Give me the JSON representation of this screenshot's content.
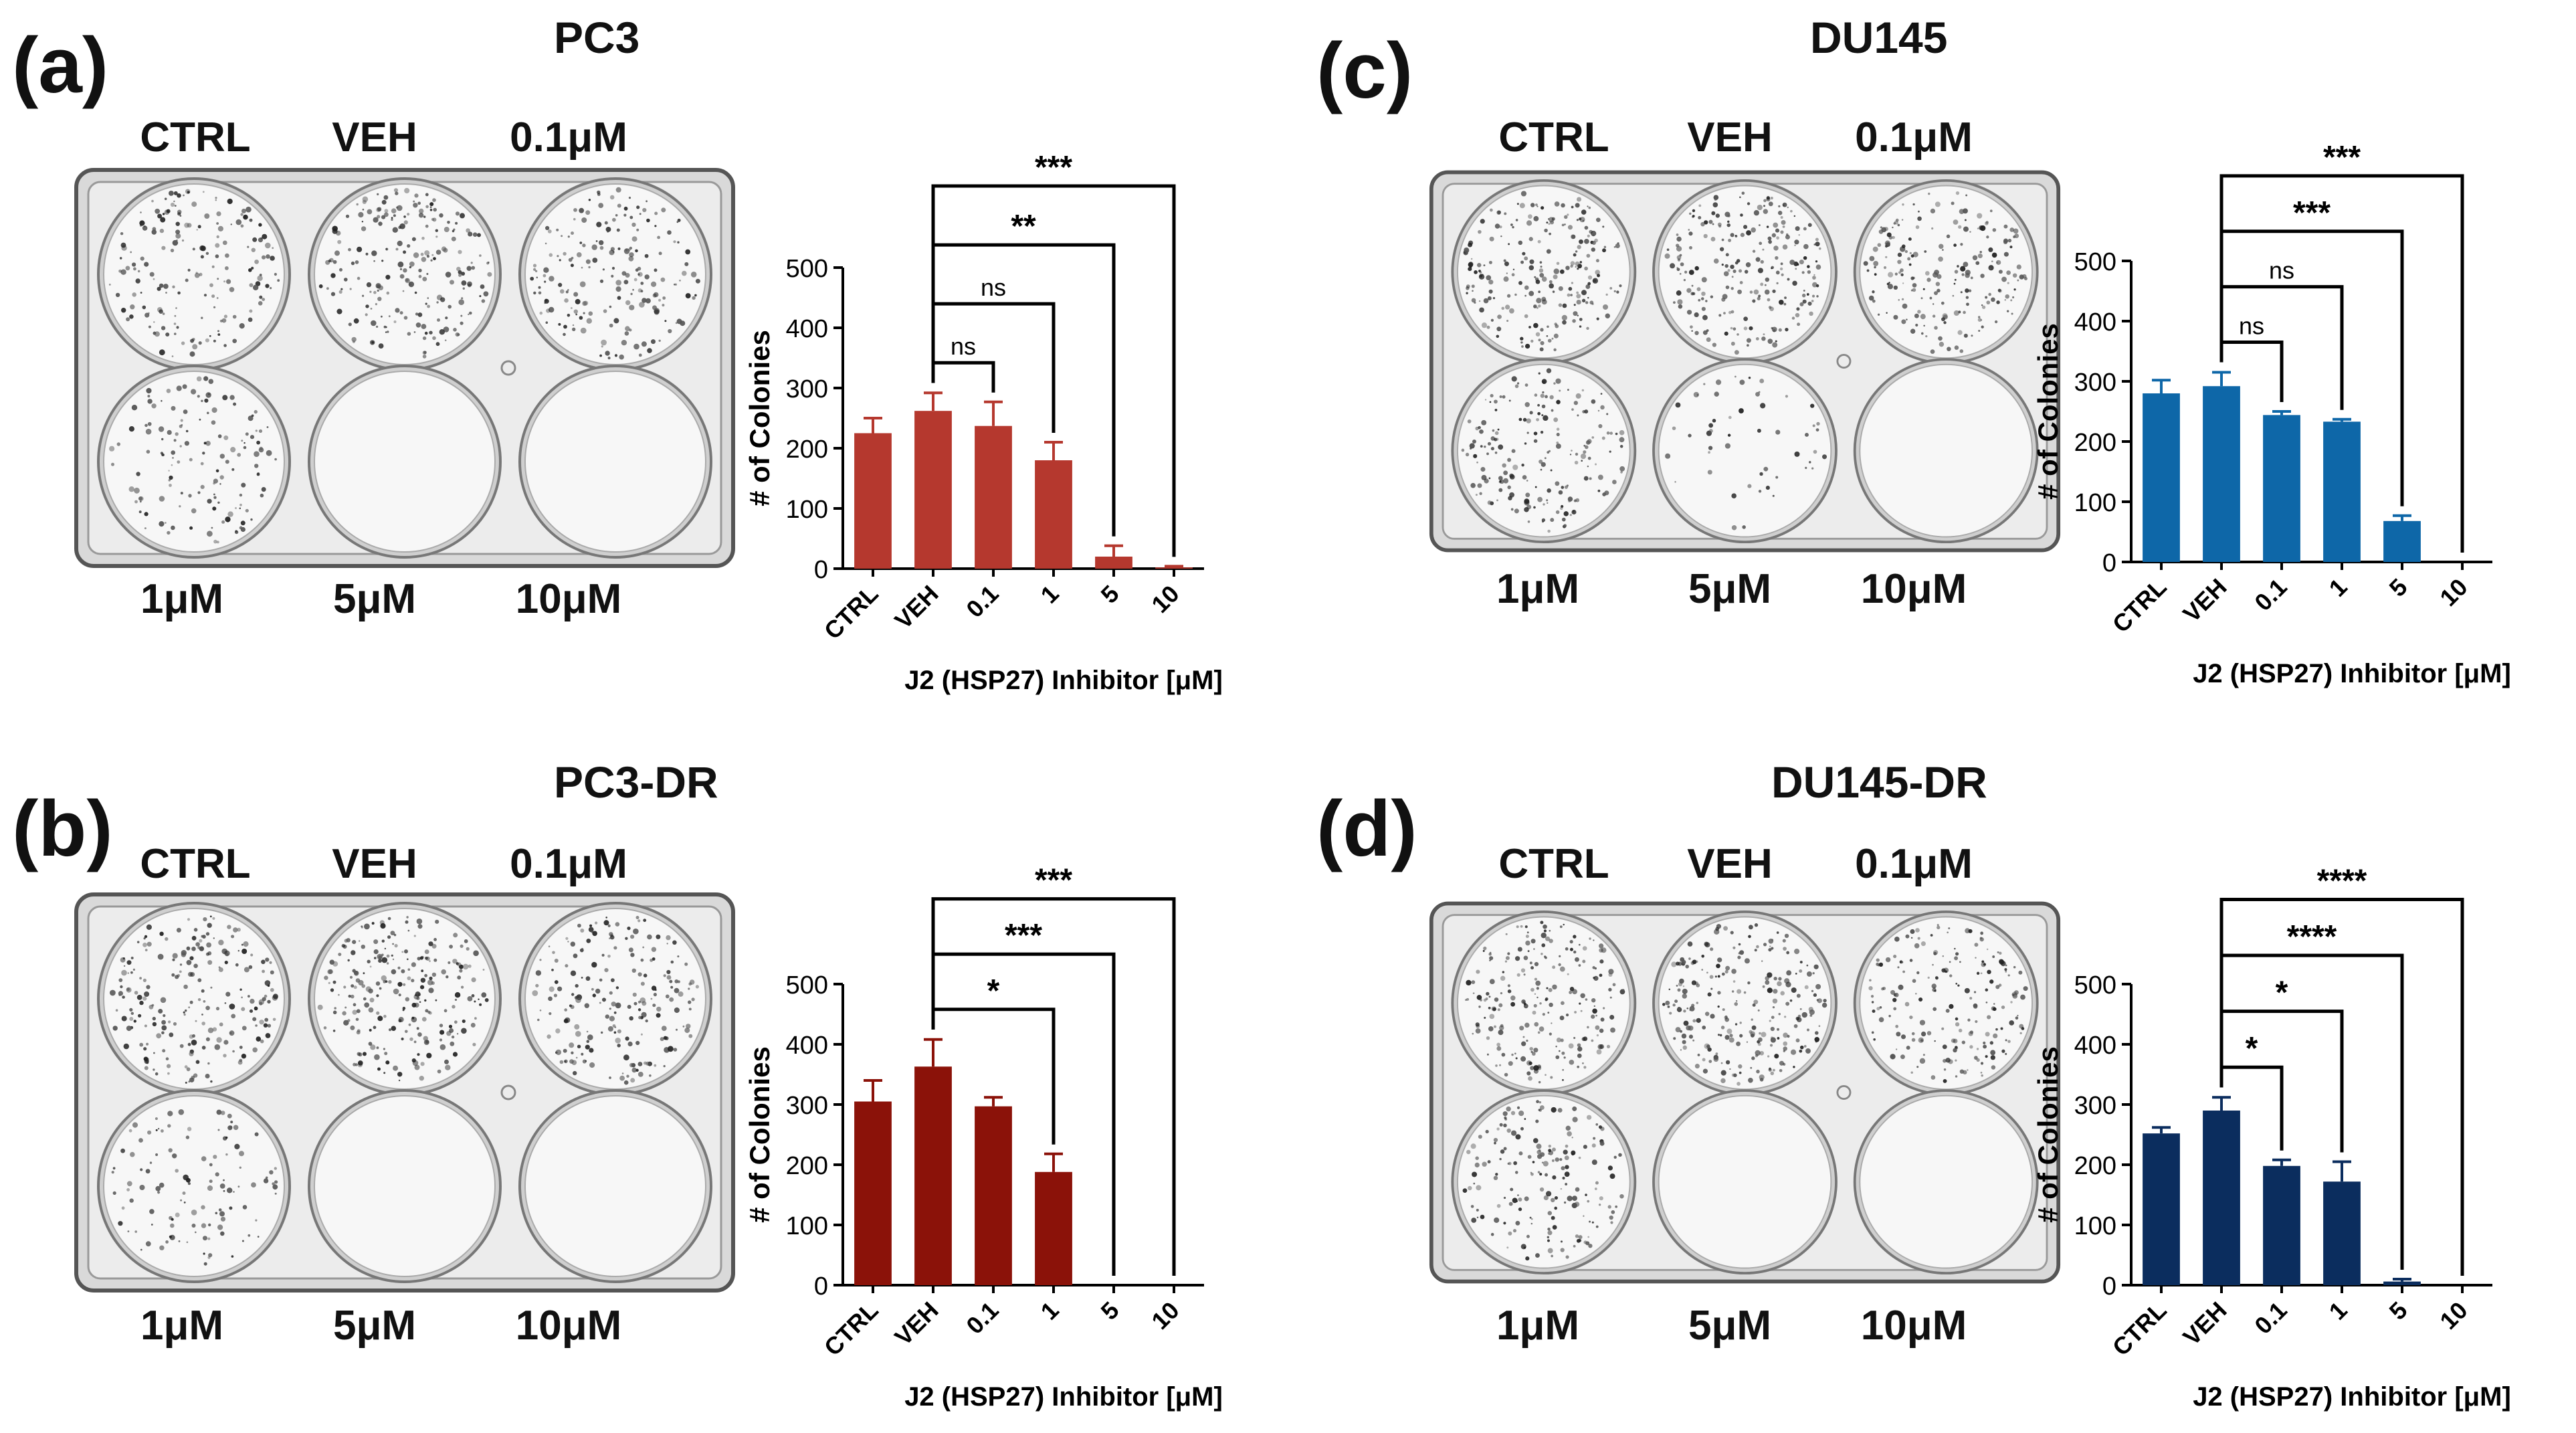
{
  "figure": {
    "panels": [
      {
        "letter": "(a)",
        "title": "PC3",
        "well_labels_top": [
          "CTRL",
          "VEH",
          "0.1μM"
        ],
        "well_labels_bottom": [
          "1μM",
          "5μM",
          "10μM"
        ],
        "colony_density": [
          0.7,
          0.85,
          0.75,
          0.55,
          0.0,
          0.0
        ]
      },
      {
        "letter": "(b)",
        "title": "PC3-DR",
        "well_labels_top": [
          "CTRL",
          "VEH",
          "0.1μM"
        ],
        "well_labels_bottom": [
          "1μM",
          "5μM",
          "10μM"
        ],
        "colony_density": [
          0.85,
          0.95,
          0.8,
          0.45,
          0.0,
          0.0
        ]
      },
      {
        "letter": "(c)",
        "title": "DU145",
        "well_labels_top": [
          "CTRL",
          "VEH",
          "0.1μM"
        ],
        "well_labels_bottom": [
          "1μM",
          "5μM",
          "10μM"
        ],
        "colony_density": [
          0.9,
          0.9,
          0.8,
          0.75,
          0.2,
          0.0
        ]
      },
      {
        "letter": "(d)",
        "title": "DU145-DR",
        "well_labels_top": [
          "CTRL",
          "VEH",
          "0.1μM"
        ],
        "well_labels_bottom": [
          "1μM",
          "5μM",
          "10μM"
        ],
        "colony_density": [
          0.85,
          0.95,
          0.75,
          0.7,
          0.0,
          0.0
        ]
      }
    ]
  },
  "chart_data": [
    {
      "type": "bar",
      "panel": "(a)",
      "categories": [
        "CTRL",
        "VEH",
        "0.1",
        "1",
        "5",
        "10"
      ],
      "values": [
        225,
        262,
        237,
        180,
        20,
        2
      ],
      "errors": [
        25,
        30,
        40,
        30,
        18,
        2
      ],
      "xlabel": "J2 (HSP27) Inhibitor [μM]",
      "ylabel": "# of Colonies",
      "ylim": [
        0,
        500
      ],
      "yticks": [
        0,
        100,
        200,
        300,
        400,
        500
      ],
      "color": "#b5382e",
      "significance": [
        {
          "from": "VEH",
          "to": "0.1",
          "label": "ns"
        },
        {
          "from": "VEH",
          "to": "1",
          "label": "ns"
        },
        {
          "from": "VEH",
          "to": "5",
          "label": "**"
        },
        {
          "from": "VEH",
          "to": "10",
          "label": "***"
        }
      ]
    },
    {
      "type": "bar",
      "panel": "(b)",
      "categories": [
        "CTRL",
        "VEH",
        "0.1",
        "1",
        "5",
        "10"
      ],
      "values": [
        305,
        363,
        297,
        188,
        0,
        0
      ],
      "errors": [
        35,
        45,
        15,
        30,
        0,
        0
      ],
      "xlabel": "J2 (HSP27) Inhibitor [μM]",
      "ylabel": "# of Colonies",
      "ylim": [
        0,
        500
      ],
      "yticks": [
        0,
        100,
        200,
        300,
        400,
        500
      ],
      "color": "#8b1209",
      "significance": [
        {
          "from": "VEH",
          "to": "1",
          "label": "*"
        },
        {
          "from": "VEH",
          "to": "5",
          "label": "***"
        },
        {
          "from": "VEH",
          "to": "10",
          "label": "***"
        }
      ]
    },
    {
      "type": "bar",
      "panel": "(c)",
      "categories": [
        "CTRL",
        "VEH",
        "0.1",
        "1",
        "5",
        "10"
      ],
      "values": [
        280,
        292,
        244,
        233,
        68,
        0
      ],
      "errors": [
        22,
        23,
        6,
        4,
        9,
        0
      ],
      "xlabel": "J2 (HSP27) Inhibitor [μM]",
      "ylabel": "# of Colonies",
      "ylim": [
        0,
        500
      ],
      "yticks": [
        0,
        100,
        200,
        300,
        400,
        500
      ],
      "color": "#0e67a8",
      "significance": [
        {
          "from": "VEH",
          "to": "0.1",
          "label": "ns"
        },
        {
          "from": "VEH",
          "to": "1",
          "label": "ns"
        },
        {
          "from": "VEH",
          "to": "5",
          "label": "***"
        },
        {
          "from": "VEH",
          "to": "10",
          "label": "***"
        }
      ]
    },
    {
      "type": "bar",
      "panel": "(d)",
      "categories": [
        "CTRL",
        "VEH",
        "0.1",
        "1",
        "5",
        "10"
      ],
      "values": [
        252,
        290,
        198,
        172,
        6,
        0
      ],
      "errors": [
        10,
        22,
        10,
        33,
        4,
        0
      ],
      "xlabel": "J2 (HSP27) Inhibitor [μM]",
      "ylabel": "# of Colonies",
      "ylim": [
        0,
        500
      ],
      "yticks": [
        0,
        100,
        200,
        300,
        400,
        500
      ],
      "color": "#0b2d5e",
      "significance": [
        {
          "from": "VEH",
          "to": "0.1",
          "label": "*"
        },
        {
          "from": "VEH",
          "to": "1",
          "label": "*"
        },
        {
          "from": "VEH",
          "to": "5",
          "label": "****"
        },
        {
          "from": "VEH",
          "to": "10",
          "label": "****"
        }
      ]
    }
  ]
}
